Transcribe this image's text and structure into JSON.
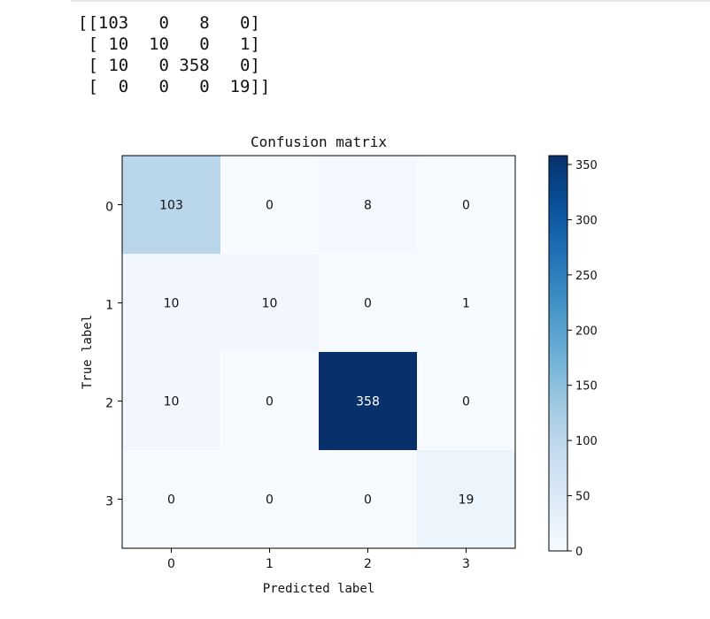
{
  "printed_matrix": "[[103   0   8   0]\n [ 10  10   0   1]\n [ 10   0 358   0]\n [  0   0   0  19]]",
  "chart_data": {
    "type": "heatmap",
    "title": "Confusion matrix",
    "xlabel": "Predicted label",
    "ylabel": "True label",
    "x_categories": [
      "0",
      "1",
      "2",
      "3"
    ],
    "y_categories": [
      "0",
      "1",
      "2",
      "3"
    ],
    "values": [
      [
        103,
        0,
        8,
        0
      ],
      [
        10,
        10,
        0,
        1
      ],
      [
        10,
        0,
        358,
        0
      ],
      [
        0,
        0,
        0,
        19
      ]
    ],
    "colormap": "Blues",
    "colorbar": {
      "min": 0,
      "max": 358,
      "ticks": [
        0,
        50,
        100,
        150,
        200,
        250,
        300,
        350
      ]
    },
    "grid": false
  }
}
